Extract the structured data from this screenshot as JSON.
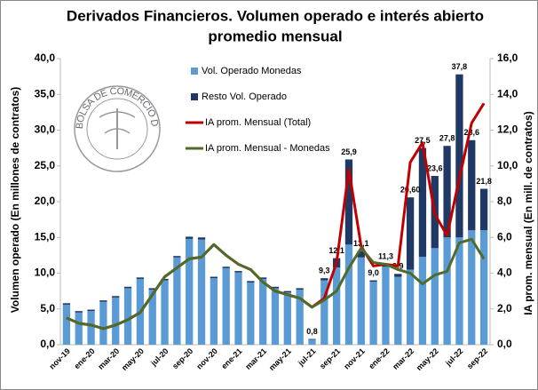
{
  "chart_data": {
    "type": "bar-line",
    "title": [
      "Derivados Financieros. Volumen operado e interés abierto",
      "promedio mensual"
    ],
    "ylabel": "Volumen operado (En millones de contratos)",
    "y2label": "IA prom. mensual  (En mill. de contratos)",
    "logo_text": "BOLSA DE COMERCIO DE ROSARIO",
    "categories": [
      "nov-19",
      null,
      "ene-20",
      null,
      "mar-20",
      null,
      "may-20",
      null,
      "jul-20",
      null,
      "sep-20",
      null,
      "nov-20",
      null,
      "ene-21",
      null,
      "mar-21",
      null,
      "may-21",
      null,
      "jul-21",
      null,
      "sep-21",
      null,
      "nov-21",
      null,
      "ene-22",
      null,
      "mar-22",
      null,
      "may-22",
      null,
      "jul-22",
      null,
      "sep-22"
    ],
    "series": [
      {
        "name": "Vol. Operado Monedas",
        "color": "#5b9bd5",
        "kind": "bar",
        "values": [
          5.6,
          4.5,
          4.7,
          6.0,
          6.6,
          7.9,
          9.2,
          7.7,
          9.0,
          12.2,
          14.8,
          14.7,
          9.3,
          10.7,
          10.1,
          8.7,
          9.2,
          7.9,
          7.3,
          7.7,
          0.7,
          9.0,
          10.8,
          14.0,
          12.2,
          8.8,
          10.9,
          9.5,
          10.5,
          12.3,
          13.5,
          15.0,
          15.0,
          16.0,
          16.0
        ]
      },
      {
        "name": "Resto Vol. Operado",
        "color": "#1f3864",
        "kind": "bar",
        "values": [
          0.2,
          0.2,
          0.2,
          0.2,
          0.2,
          0.2,
          0.2,
          0.2,
          0.2,
          0.2,
          0.3,
          0.3,
          0.2,
          0.2,
          0.2,
          0.2,
          0.2,
          0.2,
          0.2,
          0.2,
          0.1,
          0.3,
          1.3,
          11.9,
          0.9,
          0.2,
          0.4,
          0.4,
          10.1,
          15.2,
          10.1,
          12.8,
          22.8,
          12.6,
          5.8
        ]
      },
      {
        "name": "IA prom. Mensual (Total)",
        "color": "#c00000",
        "kind": "line",
        "axis": "y2",
        "values": [
          1.5,
          1.2,
          1.1,
          0.9,
          1.1,
          1.4,
          1.8,
          2.8,
          3.8,
          4.3,
          4.8,
          4.9,
          5.6,
          5.0,
          4.5,
          4.2,
          3.5,
          3.0,
          2.8,
          2.6,
          2.1,
          2.6,
          4.6,
          9.8,
          5.5,
          4.4,
          4.5,
          4.4,
          10.2,
          11.3,
          7.3,
          6.1,
          9.3,
          12.4,
          13.5
        ]
      },
      {
        "name": "IA prom. Mensual - Monedas",
        "color": "#4e6b2a",
        "kind": "line",
        "axis": "y2",
        "values": [
          1.5,
          1.2,
          1.1,
          0.9,
          1.1,
          1.4,
          1.8,
          2.8,
          3.8,
          4.3,
          4.8,
          4.9,
          5.6,
          5.0,
          4.5,
          4.2,
          3.5,
          3.0,
          2.8,
          2.6,
          2.1,
          2.5,
          3.0,
          4.3,
          5.4,
          4.6,
          4.5,
          4.2,
          4.0,
          3.4,
          3.9,
          4.1,
          5.7,
          5.9,
          4.8
        ]
      }
    ],
    "total_labels": [
      null,
      null,
      null,
      null,
      null,
      null,
      null,
      null,
      null,
      null,
      null,
      null,
      null,
      null,
      null,
      null,
      null,
      null,
      null,
      null,
      "0,8",
      "9,3",
      "12,1",
      "25,9",
      "13,1",
      "9,0",
      "11,3",
      "9,9",
      "20,60",
      "27,5",
      "23,6",
      "27,8",
      "37,8",
      "28,6",
      "21,8"
    ],
    "ylim": [
      0,
      40
    ],
    "yticks": [
      {
        "value": 0,
        "label": "0,0"
      },
      {
        "value": 5,
        "label": "5,0"
      },
      {
        "value": 10,
        "label": "10,0"
      },
      {
        "value": 15,
        "label": "15,0"
      },
      {
        "value": 20,
        "label": "20,0"
      },
      {
        "value": 25,
        "label": "25,0"
      },
      {
        "value": 30,
        "label": "30,0"
      },
      {
        "value": 35,
        "label": "35,0"
      },
      {
        "value": 40,
        "label": "40,0"
      }
    ],
    "y2lim": [
      0,
      16
    ],
    "y2ticks": [
      {
        "value": 0,
        "label": "0,0"
      },
      {
        "value": 2,
        "label": "2,0"
      },
      {
        "value": 4,
        "label": "4,0"
      },
      {
        "value": 6,
        "label": "6,0"
      },
      {
        "value": 8,
        "label": "8,0"
      },
      {
        "value": 10,
        "label": "10,0"
      },
      {
        "value": 12,
        "label": "12,0"
      },
      {
        "value": 14,
        "label": "14,0"
      },
      {
        "value": 16,
        "label": "16,0"
      }
    ],
    "grid": false,
    "legend": "top-center"
  }
}
